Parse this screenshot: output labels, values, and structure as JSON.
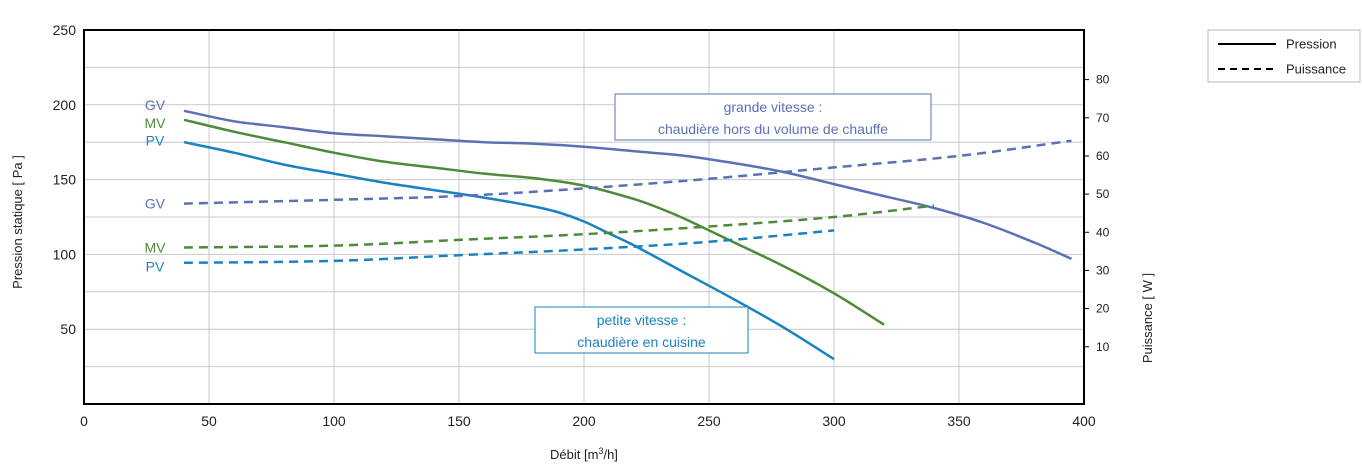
{
  "chart_data": {
    "type": "line",
    "xlabel_main": "Débit [m",
    "xlabel_sup": "3",
    "xlabel_tail": "/h]",
    "ylabel": "Pression statique [ Pa ]",
    "y2label": "Puissance [ W ]",
    "xlim": [
      0,
      400
    ],
    "ylim": [
      0,
      250
    ],
    "y2lim": [
      -5,
      93
    ],
    "x_ticks": [
      "0",
      "50",
      "100",
      "150",
      "200",
      "250",
      "300",
      "350",
      "400"
    ],
    "y_ticks": [
      "50",
      "100",
      "150",
      "200",
      "250"
    ],
    "y2_ticks": [
      "10",
      "20",
      "30",
      "40",
      "50",
      "60",
      "70",
      "80"
    ],
    "grid": true,
    "legend": {
      "placement": "top-right",
      "items": [
        {
          "label": "Pression",
          "style": "solid"
        },
        {
          "label": "Puissance",
          "style": "dashed"
        }
      ]
    },
    "colors": {
      "GV": "#5a72b5",
      "MV": "#4e8a3a",
      "PV": "#1a82c0"
    },
    "series": [
      {
        "name": "GV",
        "kind": "pression",
        "axis": "left",
        "color": "#5a72b5",
        "x": [
          40,
          60,
          80,
          100,
          120,
          140,
          160,
          180,
          200,
          220,
          240,
          260,
          280,
          300,
          320,
          340,
          360,
          380,
          395
        ],
        "y": [
          196,
          189,
          185,
          181,
          179,
          177,
          175,
          174,
          172,
          169,
          166,
          161,
          155,
          147,
          139,
          131,
          121,
          108,
          97
        ]
      },
      {
        "name": "MV",
        "kind": "pression",
        "axis": "left",
        "color": "#4e8a3a",
        "x": [
          40,
          60,
          80,
          100,
          120,
          140,
          160,
          180,
          200,
          220,
          230,
          240,
          260,
          280,
          300,
          320
        ],
        "y": [
          190,
          182,
          175,
          168,
          162,
          158,
          154,
          151,
          146,
          137,
          131,
          124,
          108,
          92,
          74,
          53
        ]
      },
      {
        "name": "PV",
        "kind": "pression",
        "axis": "left",
        "color": "#1a82c0",
        "x": [
          40,
          60,
          80,
          100,
          120,
          140,
          160,
          180,
          190,
          200,
          210,
          220,
          240,
          260,
          280,
          300
        ],
        "y": [
          175,
          168,
          160,
          154,
          148,
          143,
          138,
          132,
          128,
          122,
          114,
          106,
          88,
          70,
          51,
          30
        ]
      },
      {
        "name": "GV",
        "kind": "puissance",
        "axis": "right",
        "color": "#5a72b5",
        "x": [
          40,
          100,
          150,
          200,
          250,
          300,
          350,
          395
        ],
        "y": [
          47.5,
          48.5,
          49.5,
          51.5,
          54,
          57,
          60,
          64
        ]
      },
      {
        "name": "MV",
        "kind": "puissance",
        "axis": "right",
        "color": "#4e8a3a",
        "x": [
          40,
          100,
          150,
          200,
          250,
          300,
          340
        ],
        "y": [
          36,
          36.5,
          38,
          39.5,
          41.5,
          44,
          47
        ]
      },
      {
        "name": "PV",
        "kind": "pression",
        "kind2": "puissance",
        "axis": "right",
        "color": "#1a82c0",
        "x": [
          40,
          100,
          150,
          200,
          250,
          300
        ],
        "y": [
          32,
          32.5,
          34,
          35.5,
          37.5,
          40.5
        ]
      }
    ],
    "curve_labels": [
      {
        "text": "GV",
        "color": "#5a72b5",
        "axis": "left",
        "y": 200
      },
      {
        "text": "MV",
        "color": "#4e8a3a",
        "axis": "left",
        "y": 188
      },
      {
        "text": "PV",
        "color": "#1a82c0",
        "axis": "left",
        "y": 176
      },
      {
        "text": "GV",
        "color": "#5a72b5",
        "axis": "right",
        "y": 47.5
      },
      {
        "text": "MV",
        "color": "#4e8a3a",
        "axis": "right",
        "y": 36
      },
      {
        "text": "PV",
        "color": "#1a82c0",
        "axis": "right",
        "y": 31
      }
    ],
    "annotations": [
      {
        "lines": [
          "grande vitesse :",
          "chaudière hors du volume de chauffe"
        ],
        "color": "#5a72b5"
      },
      {
        "lines": [
          "petite vitesse :",
          "chaudière en cuisine"
        ],
        "color": "#1a82c0"
      }
    ]
  }
}
